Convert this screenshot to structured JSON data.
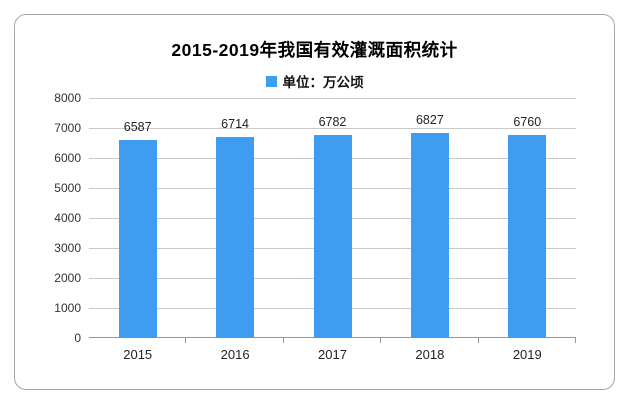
{
  "chart_data": {
    "type": "bar",
    "title": "2015-2019年我国有效灌溉面积统计",
    "legend_label": "单位：万公顷",
    "categories": [
      "2015",
      "2016",
      "2017",
      "2018",
      "2019"
    ],
    "values": [
      6587,
      6714,
      6782,
      6827,
      6760
    ],
    "xlabel": "",
    "ylabel": "",
    "ylim": [
      0,
      8000
    ],
    "ytick_step": 1000,
    "grid": true,
    "legend_position": "top-center",
    "bar_color": "#3E9DF0"
  },
  "colors": {
    "accent": "#3E9DF0",
    "grid_line": "#c9c9c9",
    "axis_line": "#999999",
    "axis_text": "#333333",
    "card_border": "#a6a6a6",
    "background": "#ffffff"
  }
}
